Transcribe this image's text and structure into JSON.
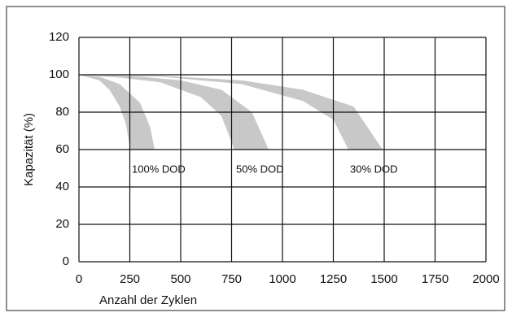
{
  "chart_data": {
    "type": "band",
    "x_label": "Anzahl der Zyklen",
    "y_label": "Kapazität (%)",
    "xlim": [
      0,
      2000
    ],
    "xticks": [
      0,
      250,
      500,
      750,
      1000,
      1250,
      1500,
      1750,
      2000
    ],
    "ylim": [
      0,
      120
    ],
    "yticks": [
      0,
      20,
      40,
      60,
      80,
      100,
      120
    ],
    "grid": true,
    "color": "#c8c8c8",
    "series": [
      {
        "name": "100% DOD",
        "upper": {
          "x": [
            0,
            100,
            200,
            300,
            350,
            372
          ],
          "values": [
            100,
            99,
            95,
            85,
            72,
            60
          ]
        },
        "lower": {
          "x": [
            0,
            100,
            150,
            200,
            230,
            252
          ],
          "values": [
            100,
            97,
            92,
            83,
            74,
            60
          ]
        }
      },
      {
        "name": "50% DOD",
        "upper": {
          "x": [
            0,
            300,
            500,
            700,
            850,
            932
          ],
          "values": [
            100,
            99,
            97,
            92,
            80,
            60
          ]
        },
        "lower": {
          "x": [
            0,
            200,
            400,
            600,
            700,
            764
          ],
          "values": [
            100,
            98.5,
            96,
            88,
            78,
            60
          ]
        }
      },
      {
        "name": "30% DOD",
        "upper": {
          "x": [
            0,
            400,
            800,
            1100,
            1350,
            1492
          ],
          "values": [
            100,
            99.5,
            97,
            92,
            83,
            60
          ]
        },
        "lower": {
          "x": [
            0,
            400,
            800,
            1100,
            1250,
            1324
          ],
          "values": [
            100,
            99,
            95,
            86,
            76,
            60
          ]
        }
      }
    ]
  }
}
